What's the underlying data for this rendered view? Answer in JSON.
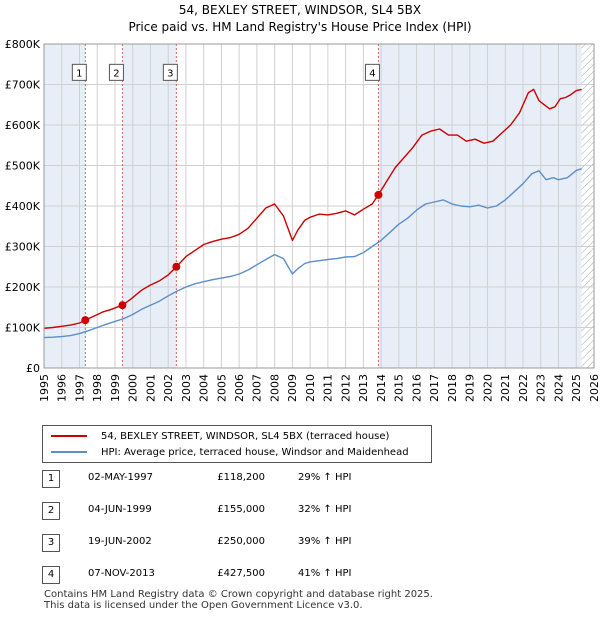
{
  "chart_data": {
    "type": "line",
    "title": "54, BEXLEY STREET, WINDSOR, SL4 5BX",
    "subtitle": "Price paid vs. HM Land Registry's House Price Index (HPI)",
    "xlim": [
      1995,
      2026
    ],
    "ylim": [
      0,
      800000
    ],
    "yticks": [
      0,
      100000,
      200000,
      300000,
      400000,
      500000,
      600000,
      700000,
      800000
    ],
    "ytick_labels": [
      "£0",
      "£100K",
      "£200K",
      "£300K",
      "£400K",
      "£500K",
      "£600K",
      "£700K",
      "£800K"
    ],
    "xticks": [
      1995,
      1996,
      1997,
      1998,
      1999,
      2000,
      2001,
      2002,
      2003,
      2004,
      2005,
      2006,
      2007,
      2008,
      2009,
      2010,
      2011,
      2012,
      2013,
      2014,
      2015,
      2016,
      2017,
      2018,
      2019,
      2020,
      2021,
      2022,
      2023,
      2024,
      2025,
      2026
    ],
    "series": [
      {
        "name": "54, BEXLEY STREET, WINDSOR, SL4 5BX (terraced house)",
        "color": "#cc0000",
        "x": [
          1995.0,
          1995.5,
          1996.0,
          1996.5,
          1997.0,
          1997.33,
          1997.8,
          1998.3,
          1998.8,
          1999.42,
          1999.9,
          2000.5,
          2001.0,
          2001.5,
          2002.0,
          2002.46,
          2003.0,
          2003.5,
          2004.0,
          2004.5,
          2005.0,
          2005.5,
          2006.0,
          2006.5,
          2007.0,
          2007.5,
          2008.0,
          2008.5,
          2009.0,
          2009.3,
          2009.7,
          2010.0,
          2010.5,
          2011.0,
          2011.5,
          2012.0,
          2012.5,
          2013.0,
          2013.5,
          2013.85,
          2014.3,
          2014.8,
          2015.3,
          2015.8,
          2016.3,
          2016.8,
          2017.3,
          2017.8,
          2018.3,
          2018.8,
          2019.3,
          2019.8,
          2020.3,
          2020.8,
          2021.3,
          2021.8,
          2022.3,
          2022.6,
          2022.9,
          2023.2,
          2023.5,
          2023.8,
          2024.1,
          2024.4,
          2024.7,
          2025.0,
          2025.3
        ],
        "y": [
          98000,
          100000,
          103000,
          106000,
          111000,
          118200,
          128000,
          138000,
          145000,
          155000,
          170000,
          192000,
          205000,
          215000,
          230000,
          250000,
          275000,
          290000,
          305000,
          312000,
          318000,
          322000,
          330000,
          345000,
          370000,
          395000,
          405000,
          375000,
          315000,
          340000,
          365000,
          372000,
          380000,
          378000,
          382000,
          388000,
          378000,
          392000,
          405000,
          427500,
          460000,
          495000,
          520000,
          545000,
          575000,
          585000,
          590000,
          575000,
          575000,
          560000,
          565000,
          555000,
          560000,
          580000,
          600000,
          630000,
          680000,
          688000,
          660000,
          650000,
          640000,
          645000,
          665000,
          668000,
          675000,
          685000,
          688000
        ]
      },
      {
        "name": "HPI: Average price, terraced house, Windsor and Maidenhead",
        "color": "#5b8fc9",
        "x": [
          1995.0,
          1995.5,
          1996.0,
          1996.5,
          1997.0,
          1997.5,
          1998.0,
          1998.5,
          1999.0,
          1999.5,
          2000.0,
          2000.5,
          2001.0,
          2001.5,
          2002.0,
          2002.5,
          2003.0,
          2003.5,
          2004.0,
          2004.5,
          2005.0,
          2005.5,
          2006.0,
          2006.5,
          2007.0,
          2007.5,
          2008.0,
          2008.5,
          2009.0,
          2009.3,
          2009.7,
          2010.0,
          2010.5,
          2011.0,
          2011.5,
          2012.0,
          2012.5,
          2013.0,
          2013.5,
          2014.0,
          2014.5,
          2015.0,
          2015.5,
          2016.0,
          2016.5,
          2017.0,
          2017.5,
          2018.0,
          2018.5,
          2019.0,
          2019.5,
          2020.0,
          2020.5,
          2021.0,
          2021.5,
          2022.0,
          2022.5,
          2022.9,
          2023.3,
          2023.7,
          2024.0,
          2024.5,
          2025.0,
          2025.3
        ],
        "y": [
          75000,
          76000,
          77500,
          80000,
          85000,
          92000,
          100000,
          108000,
          115000,
          122000,
          132000,
          145000,
          155000,
          165000,
          178000,
          190000,
          200000,
          208000,
          213000,
          218000,
          222000,
          226000,
          232000,
          242000,
          255000,
          268000,
          280000,
          270000,
          232000,
          245000,
          258000,
          262000,
          265000,
          268000,
          270000,
          274000,
          275000,
          285000,
          300000,
          315000,
          335000,
          355000,
          370000,
          390000,
          405000,
          410000,
          415000,
          405000,
          400000,
          398000,
          402000,
          395000,
          400000,
          415000,
          435000,
          455000,
          480000,
          487000,
          465000,
          470000,
          465000,
          470000,
          488000,
          492000
        ]
      }
    ],
    "sales": [
      {
        "id": "1",
        "x": 1997.33,
        "y": 118200
      },
      {
        "id": "2",
        "x": 1999.42,
        "y": 155000
      },
      {
        "id": "3",
        "x": 2002.46,
        "y": 250000
      },
      {
        "id": "4",
        "x": 2013.85,
        "y": 427500
      }
    ],
    "shaded_regions": [
      {
        "from": 1995.0,
        "to": 1997.33
      },
      {
        "from": 1999.42,
        "to": 2002.46
      },
      {
        "from": 2013.85,
        "to": 2025.3
      }
    ],
    "future_hatch_from": 2025.3,
    "box_y": 730000
  },
  "legend": {
    "property": "54, BEXLEY STREET, WINDSOR, SL4 5BX (terraced house)",
    "hpi": "HPI: Average price, terraced house, Windsor and Maidenhead",
    "property_color": "#cc0000",
    "hpi_color": "#5b8fc9"
  },
  "transactions": [
    {
      "num": "1",
      "date": "02-MAY-1997",
      "price": "£118,200",
      "hpi": "29% ↑ HPI"
    },
    {
      "num": "2",
      "date": "04-JUN-1999",
      "price": "£155,000",
      "hpi": "32% ↑ HPI"
    },
    {
      "num": "3",
      "date": "19-JUN-2002",
      "price": "£250,000",
      "hpi": "39% ↑ HPI"
    },
    {
      "num": "4",
      "date": "07-NOV-2013",
      "price": "£427,500",
      "hpi": "41% ↑ HPI"
    }
  ],
  "footer": {
    "line1": "Contains HM Land Registry data © Crown copyright and database right 2025.",
    "line2": "This data is licensed under the Open Government Licence v3.0."
  }
}
